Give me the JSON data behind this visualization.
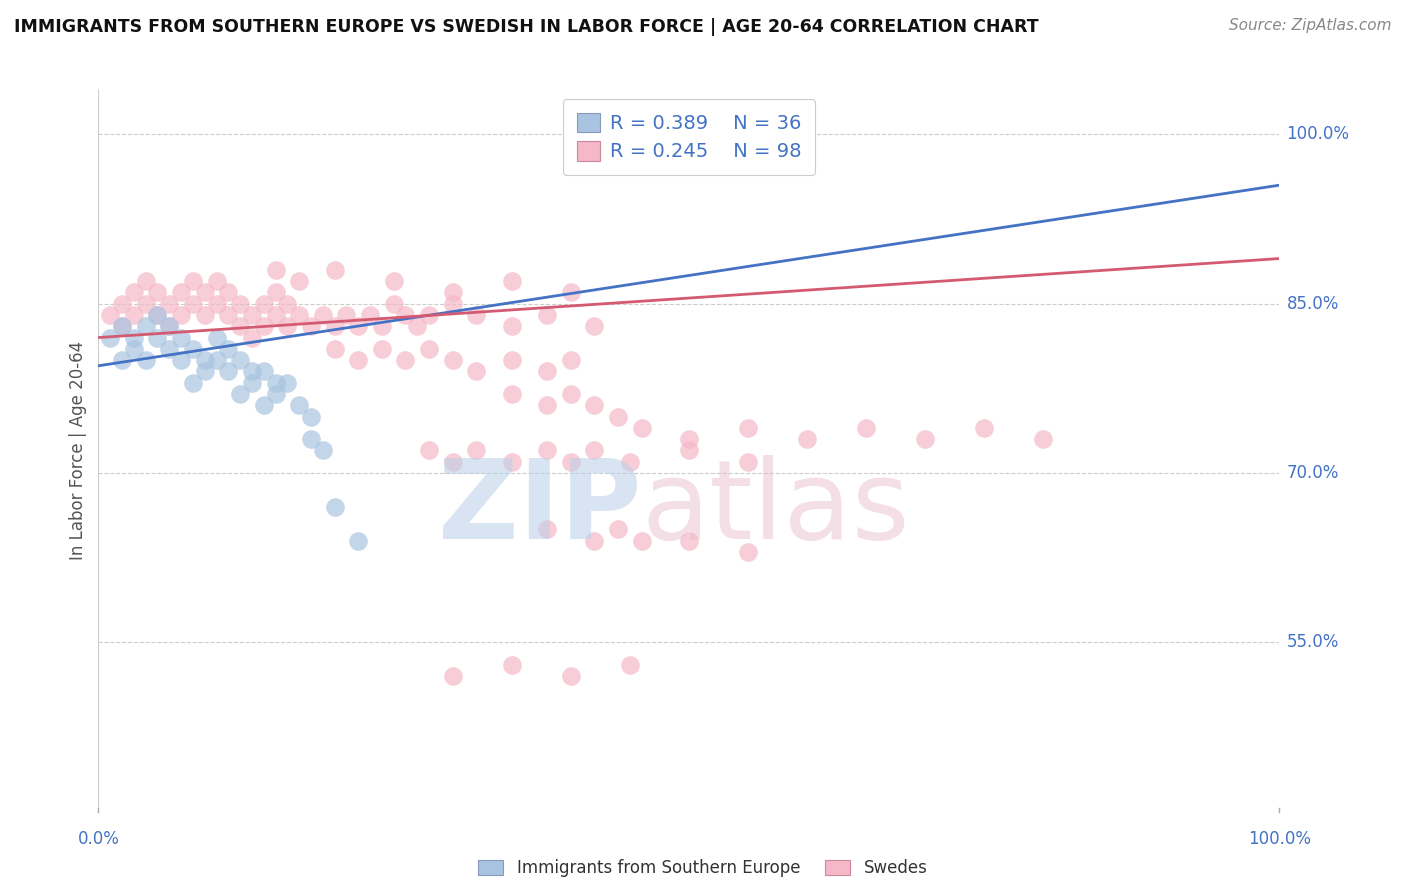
{
  "title": "IMMIGRANTS FROM SOUTHERN EUROPE VS SWEDISH IN LABOR FORCE | AGE 20-64 CORRELATION CHART",
  "source": "Source: ZipAtlas.com",
  "ylabel": "In Labor Force | Age 20-64",
  "xlim": [
    0.0,
    1.0
  ],
  "ylim": [
    0.4,
    1.04
  ],
  "ytick_labels": [
    "55.0%",
    "70.0%",
    "85.0%",
    "100.0%"
  ],
  "ytick_values": [
    0.55,
    0.7,
    0.85,
    1.0
  ],
  "legend_R_blue": "R = 0.389",
  "legend_N_blue": "N = 36",
  "legend_R_pink": "R = 0.245",
  "legend_N_pink": "N = 98",
  "blue_scatter_color": "#a8c4e0",
  "pink_scatter_color": "#f4b8c8",
  "blue_line_color": "#4472c4",
  "pink_line_color": "#d45a72",
  "label_color": "#4472c4",
  "blue_line_y_start": 0.795,
  "blue_line_y_end": 0.955,
  "pink_line_y_start": 0.82,
  "pink_line_y_end": 0.89,
  "blue_points_x": [
    0.01,
    0.02,
    0.03,
    0.04,
    0.05,
    0.06,
    0.02,
    0.03,
    0.04,
    0.05,
    0.06,
    0.07,
    0.07,
    0.08,
    0.09,
    0.1,
    0.11,
    0.12,
    0.13,
    0.08,
    0.09,
    0.1,
    0.11,
    0.12,
    0.13,
    0.14,
    0.15,
    0.14,
    0.15,
    0.16,
    0.17,
    0.18,
    0.18,
    0.19,
    0.2,
    0.22
  ],
  "blue_points_y": [
    0.82,
    0.83,
    0.82,
    0.83,
    0.84,
    0.83,
    0.8,
    0.81,
    0.8,
    0.82,
    0.81,
    0.82,
    0.8,
    0.81,
    0.8,
    0.82,
    0.81,
    0.8,
    0.79,
    0.78,
    0.79,
    0.8,
    0.79,
    0.77,
    0.78,
    0.79,
    0.78,
    0.76,
    0.77,
    0.78,
    0.76,
    0.75,
    0.73,
    0.72,
    0.67,
    0.64
  ],
  "pink_points_x": [
    0.01,
    0.02,
    0.02,
    0.03,
    0.03,
    0.04,
    0.04,
    0.05,
    0.05,
    0.06,
    0.06,
    0.07,
    0.07,
    0.08,
    0.08,
    0.09,
    0.09,
    0.1,
    0.1,
    0.11,
    0.11,
    0.12,
    0.12,
    0.13,
    0.13,
    0.14,
    0.14,
    0.15,
    0.15,
    0.16,
    0.16,
    0.17,
    0.18,
    0.19,
    0.2,
    0.21,
    0.22,
    0.23,
    0.24,
    0.25,
    0.26,
    0.27,
    0.28,
    0.3,
    0.32,
    0.35,
    0.38,
    0.42,
    0.2,
    0.22,
    0.24,
    0.26,
    0.28,
    0.3,
    0.32,
    0.35,
    0.38,
    0.4,
    0.35,
    0.38,
    0.4,
    0.42,
    0.44,
    0.46,
    0.5,
    0.55,
    0.6,
    0.65,
    0.7,
    0.75,
    0.8,
    0.15,
    0.17,
    0.2,
    0.25,
    0.3,
    0.35,
    0.4,
    0.38,
    0.42,
    0.44,
    0.46,
    0.5,
    0.55,
    0.28,
    0.3,
    0.32,
    0.35,
    0.38,
    0.4,
    0.42,
    0.45,
    0.5,
    0.55,
    0.3,
    0.35,
    0.4,
    0.45
  ],
  "pink_points_y": [
    0.84,
    0.85,
    0.83,
    0.86,
    0.84,
    0.87,
    0.85,
    0.86,
    0.84,
    0.85,
    0.83,
    0.86,
    0.84,
    0.87,
    0.85,
    0.86,
    0.84,
    0.87,
    0.85,
    0.86,
    0.84,
    0.85,
    0.83,
    0.84,
    0.82,
    0.85,
    0.83,
    0.86,
    0.84,
    0.85,
    0.83,
    0.84,
    0.83,
    0.84,
    0.83,
    0.84,
    0.83,
    0.84,
    0.83,
    0.85,
    0.84,
    0.83,
    0.84,
    0.85,
    0.84,
    0.83,
    0.84,
    0.83,
    0.81,
    0.8,
    0.81,
    0.8,
    0.81,
    0.8,
    0.79,
    0.8,
    0.79,
    0.8,
    0.77,
    0.76,
    0.77,
    0.76,
    0.75,
    0.74,
    0.73,
    0.74,
    0.73,
    0.74,
    0.73,
    0.74,
    0.73,
    0.88,
    0.87,
    0.88,
    0.87,
    0.86,
    0.87,
    0.86,
    0.65,
    0.64,
    0.65,
    0.64,
    0.64,
    0.63,
    0.72,
    0.71,
    0.72,
    0.71,
    0.72,
    0.71,
    0.72,
    0.71,
    0.72,
    0.71,
    0.52,
    0.53,
    0.52,
    0.53
  ]
}
